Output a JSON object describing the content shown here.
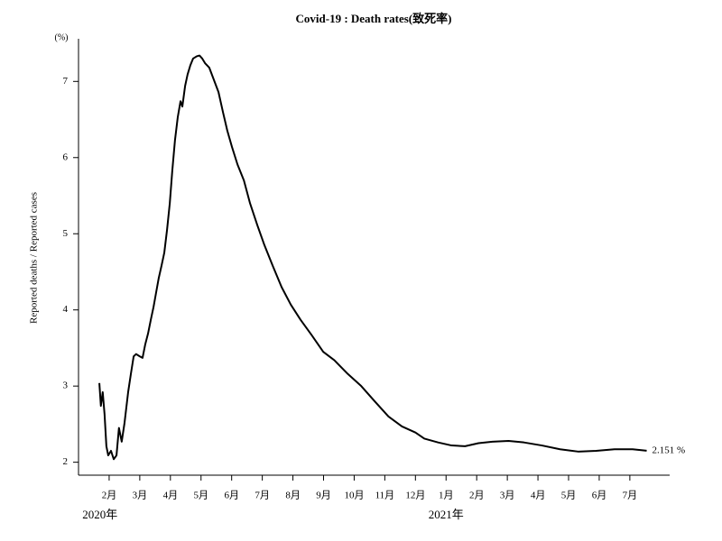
{
  "chart_data": {
    "type": "line",
    "title": "Covid-19 : Death rates(致死率)",
    "y_label": "Reported deaths / Reported cases",
    "y_unit": "(%)",
    "annotation": "2.151 %",
    "color": "#000000",
    "x": [
      1.68,
      1.73,
      1.79,
      1.85,
      1.91,
      1.97,
      2.06,
      2.15,
      2.24,
      2.32,
      2.41,
      2.5,
      2.62,
      2.71,
      2.8,
      2.88,
      3.0,
      3.09,
      3.18,
      3.27,
      3.36,
      3.45,
      3.53,
      3.62,
      3.71,
      3.8,
      3.89,
      3.98,
      4.06,
      4.15,
      4.24,
      4.33,
      4.39,
      4.48,
      4.56,
      4.65,
      4.74,
      4.86,
      4.95,
      5.04,
      5.13,
      5.27,
      5.42,
      5.57,
      5.72,
      5.86,
      6.01,
      6.19,
      6.4,
      6.6,
      6.84,
      7.07,
      7.34,
      7.63,
      7.93,
      8.25,
      8.61,
      8.99,
      9.35,
      9.79,
      10.23,
      10.67,
      11.12,
      11.56,
      12.0,
      12.29,
      12.74,
      13.18,
      13.62,
      14.06,
      14.51,
      15.04,
      15.54,
      16.13,
      16.72,
      17.31,
      17.9,
      18.5,
      19.09,
      19.55
    ],
    "values": [
      3.04,
      2.74,
      2.92,
      2.63,
      2.21,
      2.09,
      2.15,
      2.04,
      2.09,
      2.45,
      2.27,
      2.51,
      2.92,
      3.16,
      3.39,
      3.42,
      3.39,
      3.37,
      3.55,
      3.69,
      3.87,
      4.04,
      4.22,
      4.42,
      4.58,
      4.75,
      5.05,
      5.4,
      5.82,
      6.23,
      6.53,
      6.74,
      6.67,
      6.94,
      7.09,
      7.21,
      7.3,
      7.33,
      7.34,
      7.3,
      7.24,
      7.18,
      7.02,
      6.86,
      6.59,
      6.35,
      6.14,
      5.91,
      5.7,
      5.4,
      5.11,
      4.85,
      4.58,
      4.3,
      4.07,
      3.87,
      3.67,
      3.45,
      3.34,
      3.16,
      3.0,
      2.8,
      2.6,
      2.47,
      2.39,
      2.31,
      2.26,
      2.22,
      2.21,
      2.25,
      2.27,
      2.28,
      2.26,
      2.22,
      2.17,
      2.14,
      2.15,
      2.17,
      2.17,
      2.151
    ],
    "xlim": [
      1,
      20.3
    ],
    "xticks": [
      {
        "value": 2,
        "label": "2月"
      },
      {
        "value": 3,
        "label": "3月"
      },
      {
        "value": 4,
        "label": "4月"
      },
      {
        "value": 5,
        "label": "5月"
      },
      {
        "value": 6,
        "label": "6月"
      },
      {
        "value": 7,
        "label": "7月"
      },
      {
        "value": 8,
        "label": "8月"
      },
      {
        "value": 9,
        "label": "9月"
      },
      {
        "value": 10,
        "label": "10月"
      },
      {
        "value": 11,
        "label": "11月"
      },
      {
        "value": 12,
        "label": "12月"
      },
      {
        "value": 13,
        "label": "1月"
      },
      {
        "value": 14,
        "label": "2月"
      },
      {
        "value": 15,
        "label": "3月"
      },
      {
        "value": 16,
        "label": "4月"
      },
      {
        "value": 17,
        "label": "5月"
      },
      {
        "value": 18,
        "label": "6月"
      },
      {
        "value": 19,
        "label": "7月"
      }
    ],
    "year_ticks": [
      {
        "value": 1.7,
        "label": "2020年"
      },
      {
        "value": 13,
        "label": "2021年"
      }
    ],
    "ylim": [
      1.83,
      7.56
    ],
    "yticks": [
      2,
      3,
      4,
      5,
      6,
      7
    ],
    "grid": false
  }
}
